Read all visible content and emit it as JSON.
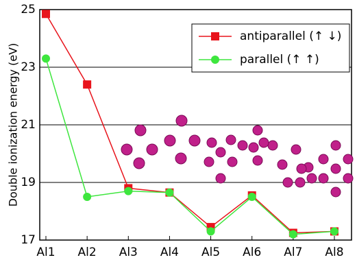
{
  "chart_data": {
    "type": "line",
    "y_label": "Double ionization energy (eV)",
    "categories": [
      "Al1",
      "Al2",
      "Al3",
      "Al4",
      "Al5",
      "Al6",
      "Al7",
      "Al8"
    ],
    "series": [
      {
        "name": "antiparallel (↑ ↓)",
        "color": "#e8141c",
        "marker": "square",
        "values": [
          24.85,
          22.4,
          18.8,
          18.65,
          17.45,
          18.55,
          17.25,
          17.3
        ]
      },
      {
        "name": "parallel (↑ ↑)",
        "color": "#3ee63e",
        "marker": "circle",
        "values": [
          23.3,
          18.5,
          18.7,
          18.65,
          17.3,
          18.5,
          17.2,
          17.3
        ]
      }
    ],
    "ylim": [
      17,
      25
    ],
    "yticks": [
      17,
      19,
      21,
      23,
      25
    ],
    "grid": true,
    "legend": "upper right"
  }
}
